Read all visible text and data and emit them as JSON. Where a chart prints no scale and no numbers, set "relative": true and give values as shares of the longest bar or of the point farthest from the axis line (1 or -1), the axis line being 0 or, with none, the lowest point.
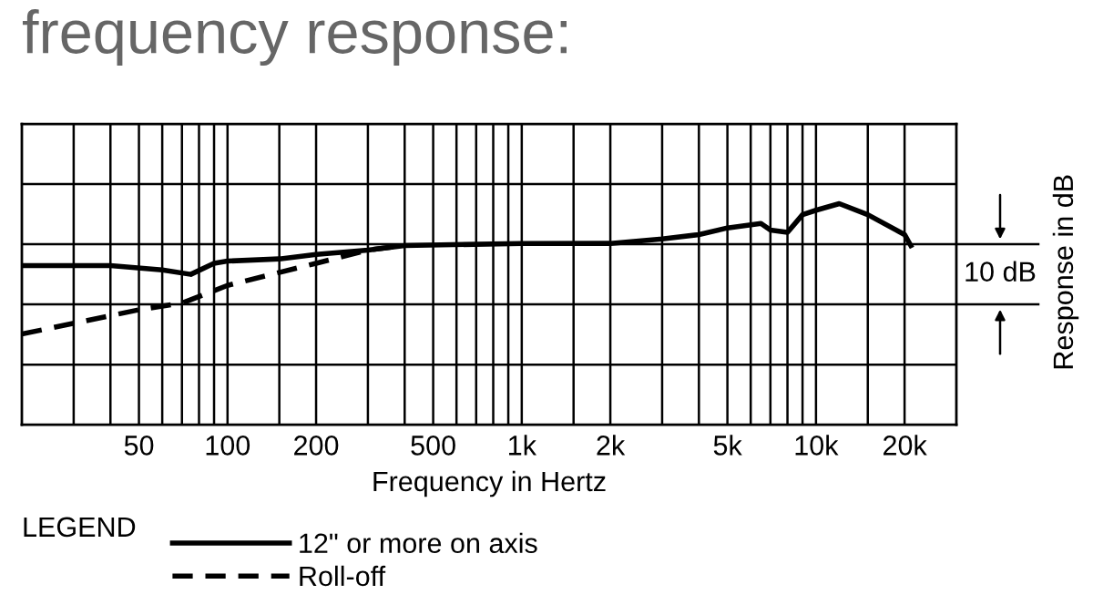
{
  "chart_data": {
    "type": "line",
    "title": "frequency response:",
    "xlabel": "Frequency in Hertz",
    "y2label": "Response in dB",
    "legend_title": "LEGEND",
    "annotations": [
      "10 dB"
    ],
    "relative": true,
    "log": "x",
    "grid": true,
    "legend": "bottom left",
    "marker": "none",
    "xlim": [
      20,
      30000
    ],
    "xticks": [
      50,
      100,
      200,
      500,
      {
        "value": 1000,
        "label": "1k"
      },
      {
        "value": 2000,
        "label": "2k"
      },
      {
        "value": 5000,
        "label": "5k"
      },
      {
        "value": 10000,
        "label": "10k"
      },
      {
        "value": 20000,
        "label": "20k"
      }
    ],
    "series": [
      {
        "name": "12\" or more on axis",
        "color": "#000000",
        "line_style": "solid",
        "x": [
          20,
          40,
          60,
          75,
          90,
          100,
          150,
          200,
          300,
          400,
          1000,
          2000,
          3000,
          4000,
          5000,
          6500,
          7000,
          8000,
          9000,
          10000,
          12000,
          15000,
          20000,
          21000
        ],
        "values": [
          0.72,
          0.72,
          0.7,
          0.68,
          0.73,
          0.74,
          0.75,
          0.77,
          0.79,
          0.81,
          0.82,
          0.82,
          0.84,
          0.86,
          0.89,
          0.91,
          0.88,
          0.87,
          0.95,
          0.97,
          1.0,
          0.95,
          0.86,
          0.81
        ]
      },
      {
        "name": "Roll-off",
        "color": "#000000",
        "line_style": "dashed",
        "x": [
          20,
          50,
          70,
          100,
          200,
          300,
          400
        ],
        "values": [
          0.41,
          0.52,
          0.55,
          0.63,
          0.73,
          0.79,
          0.81
        ]
      }
    ]
  }
}
